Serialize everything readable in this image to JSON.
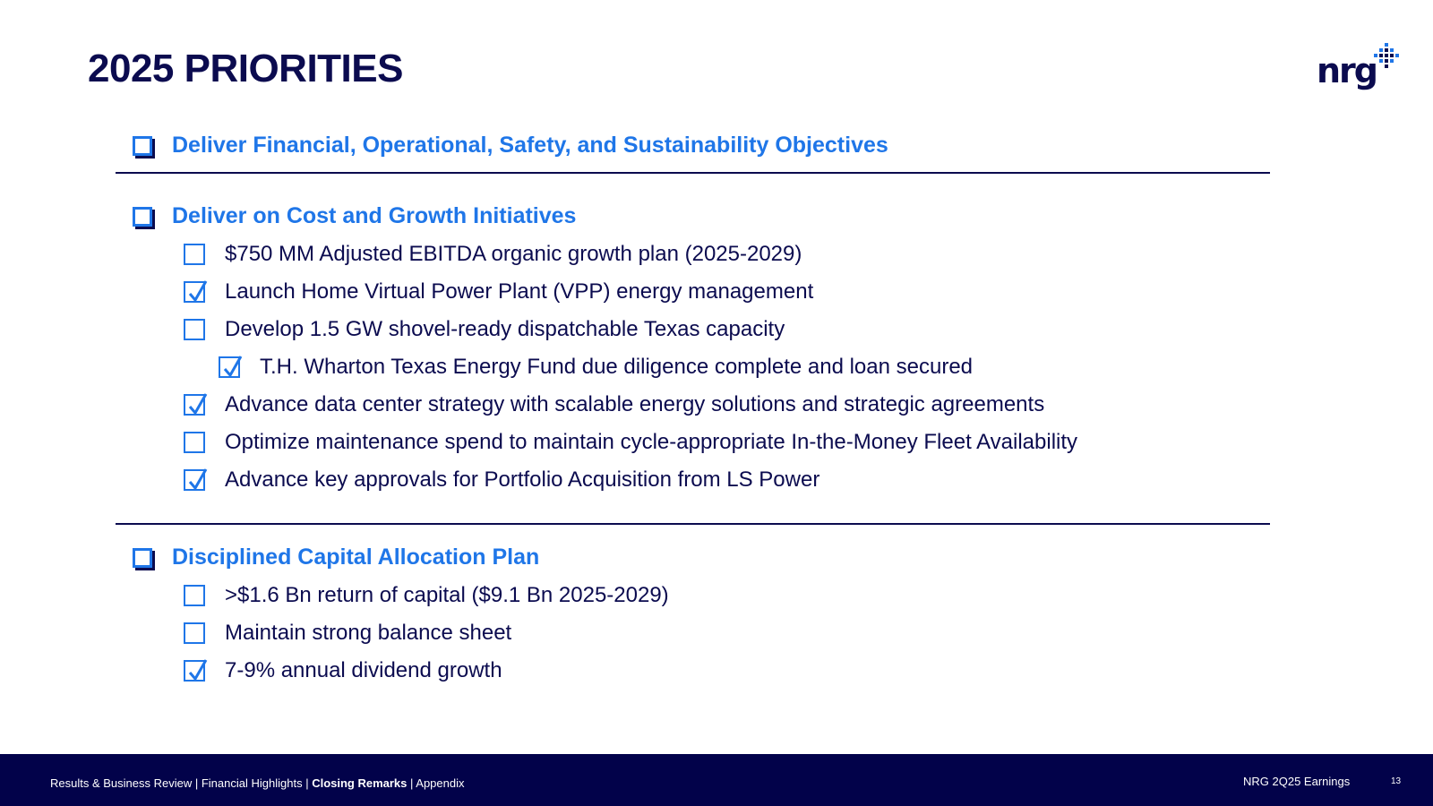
{
  "title": "2025 PRIORITIES",
  "logo": {
    "text": "nrg",
    "icon": "nrg-dot-mark-icon"
  },
  "colors": {
    "navy": "#0b0b4f",
    "accent_blue": "#1f76e8",
    "footer_bg": "#02024a"
  },
  "sections": [
    {
      "heading": "Deliver Financial, Operational, Safety, and Sustainability Objectives",
      "items": []
    },
    {
      "heading": "Deliver on Cost and Growth Initiatives",
      "items": [
        {
          "text": "$750 MM Adjusted EBITDA organic growth plan (2025-2029)",
          "checked": false
        },
        {
          "text": "Launch Home Virtual Power Plant (VPP) energy management",
          "checked": true
        },
        {
          "text": "Develop 1.5 GW shovel-ready dispatchable Texas capacity",
          "checked": false
        },
        {
          "text": "T.H. Wharton Texas Energy Fund due diligence complete and loan secured",
          "checked": true
        },
        {
          "text": "Advance data center strategy with scalable energy solutions and strategic agreements",
          "checked": true
        },
        {
          "text": "Optimize maintenance spend to maintain cycle-appropriate In-the-Money Fleet Availability",
          "checked": false
        },
        {
          "text": "Advance key approvals for Portfolio Acquisition from LS Power",
          "checked": true
        }
      ]
    },
    {
      "heading": "Disciplined Capital Allocation Plan",
      "items": [
        {
          "text": ">$1.6 Bn return of capital ($9.1 Bn 2025-2029)",
          "checked": false
        },
        {
          "text": "Maintain strong balance sheet",
          "checked": false
        },
        {
          "text": "7-9% annual dividend growth",
          "checked": true
        }
      ]
    }
  ],
  "footer": {
    "nav": [
      {
        "label": "Results & Business Review",
        "active": false
      },
      {
        "label": "Financial Highlights",
        "active": false
      },
      {
        "label": "Closing Remarks",
        "active": true
      },
      {
        "label": "Appendix",
        "active": false
      }
    ],
    "separator": " | ",
    "doc_label": "NRG 2Q25 Earnings",
    "page_number": "13"
  }
}
